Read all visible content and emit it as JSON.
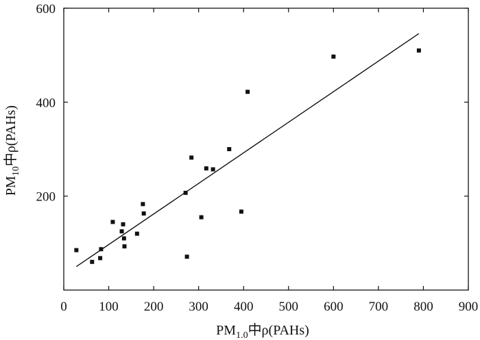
{
  "chart_data": {
    "type": "scatter",
    "title": "",
    "xlabel": {
      "prefix": "PM",
      "subscript": "1.0",
      "suffix": "中ρ(PAHs)"
    },
    "ylabel": {
      "prefix": "PM",
      "subscript": "10",
      "suffix": "中ρ(PAHs)"
    },
    "xlim": [
      0,
      900
    ],
    "ylim": [
      0,
      600
    ],
    "xticks": [
      0,
      100,
      200,
      300,
      400,
      500,
      600,
      700,
      800,
      900
    ],
    "yticks": [
      200,
      400,
      600
    ],
    "xtick_labels": [
      "0",
      "100",
      "200",
      "300",
      "400",
      "500",
      "600",
      "700",
      "800",
      "900"
    ],
    "ytick_labels": [
      "200",
      "400",
      "600"
    ],
    "grid": false,
    "legend": "none",
    "marker_color": "#111111",
    "line_color": "#111111",
    "points": [
      {
        "x": 28,
        "y": 85
      },
      {
        "x": 63,
        "y": 60
      },
      {
        "x": 81,
        "y": 68
      },
      {
        "x": 83,
        "y": 87
      },
      {
        "x": 109,
        "y": 145
      },
      {
        "x": 129,
        "y": 125
      },
      {
        "x": 132,
        "y": 140
      },
      {
        "x": 134,
        "y": 110
      },
      {
        "x": 135,
        "y": 93
      },
      {
        "x": 163,
        "y": 120
      },
      {
        "x": 176,
        "y": 183
      },
      {
        "x": 178,
        "y": 163
      },
      {
        "x": 271,
        "y": 207
      },
      {
        "x": 274,
        "y": 71
      },
      {
        "x": 284,
        "y": 282
      },
      {
        "x": 306,
        "y": 155
      },
      {
        "x": 317,
        "y": 259
      },
      {
        "x": 332,
        "y": 257
      },
      {
        "x": 368,
        "y": 300
      },
      {
        "x": 395,
        "y": 167
      },
      {
        "x": 409,
        "y": 422
      },
      {
        "x": 600,
        "y": 497
      },
      {
        "x": 790,
        "y": 510
      }
    ],
    "fit_line": {
      "start": {
        "x": 28,
        "y": 50
      },
      "end": {
        "x": 790,
        "y": 546
      }
    }
  }
}
